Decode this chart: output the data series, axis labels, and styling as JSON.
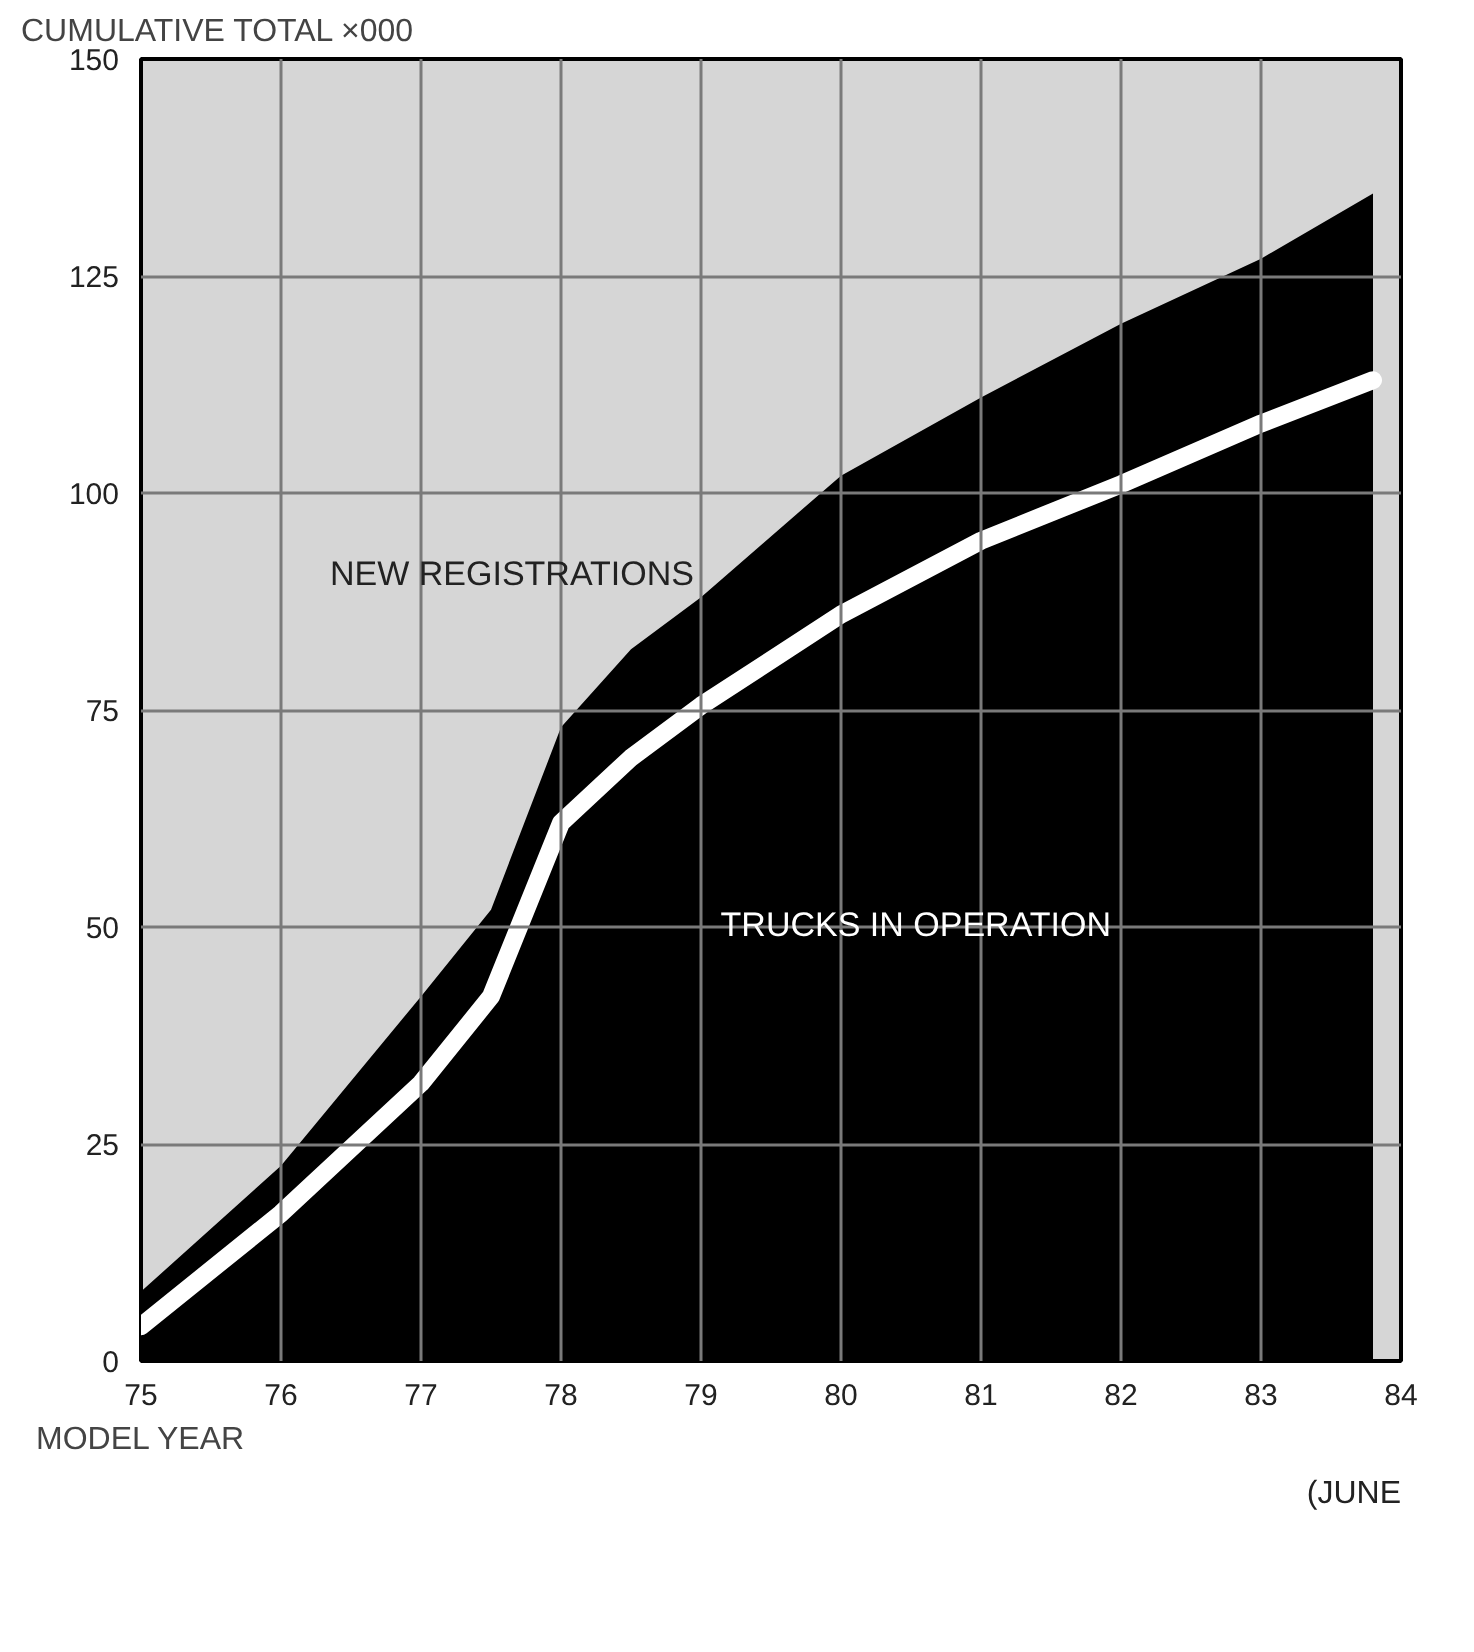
{
  "chart_data": {
    "type": "area",
    "ylabel": "CUMULATIVE TOTAL ×000",
    "xlabel": "MODEL YEAR",
    "annotations": [
      "(JUNE"
    ],
    "x": [
      75,
      76,
      77,
      77.5,
      78,
      78.5,
      79,
      80,
      81,
      82,
      83,
      83.8
    ],
    "series": [
      {
        "name": "NEW REGISTRATIONS",
        "color": "#000000",
        "values": [
          8,
          22.5,
          42,
          52,
          73,
          82,
          88,
          102,
          111,
          119.5,
          127,
          134.5
        ]
      },
      {
        "name": "TRUCKS IN OPERATION",
        "type": "line",
        "color": "#ffffff",
        "values": [
          4,
          17,
          32,
          42,
          62,
          69.5,
          75.5,
          86,
          94.5,
          101,
          108,
          113
        ]
      }
    ],
    "xlim": [
      75,
      84
    ],
    "ylim": [
      0,
      150
    ],
    "xticks": [
      75,
      76,
      77,
      78,
      79,
      80,
      81,
      82,
      83,
      84
    ],
    "yticks": [
      0,
      25,
      50,
      75,
      100,
      125,
      150
    ],
    "grid": true,
    "line_style": "solid"
  }
}
